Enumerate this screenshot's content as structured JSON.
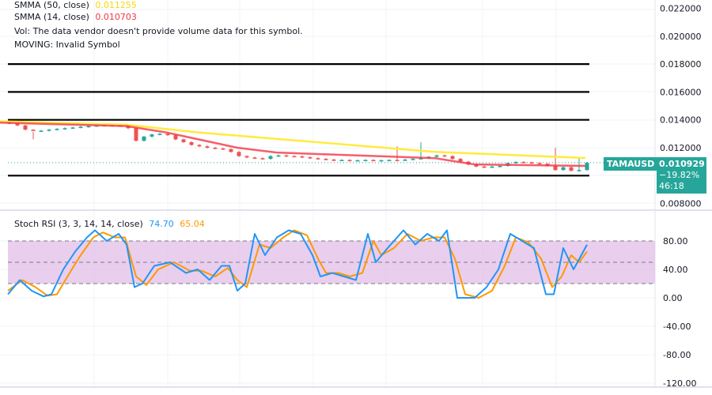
{
  "legend": {
    "smma50_label": "SMMA (50, close)",
    "smma50_value": "0.011255",
    "smma14_label": "SMMA (14, close)",
    "smma14_value": "0.010703",
    "vol_text": "Vol: The data vendor doesn't provide volume data for this symbol.",
    "moving_text": "MOVING: Invalid Symbol",
    "stoch_label": "Stoch RSI (3, 3, 14, 14, close)",
    "stoch_k_value": "74.70",
    "stoch_d_value": "65.04"
  },
  "symbol_tag": "TAMAUSD",
  "price_tag": {
    "price": "0.010929",
    "change": "−19.82%",
    "countdown": "46:18"
  },
  "colors": {
    "up": "#26a69a",
    "down": "#ef5350",
    "smma50": "#ffeb3b",
    "smma14": "#f23645",
    "stoch_k": "#2196f3",
    "stoch_d": "#ff9800",
    "band": "#e1bee7"
  },
  "chart_data": [
    {
      "type": "candlestick",
      "y_ticks": [
        "0.022000",
        "0.020000",
        "0.018000",
        "0.016000",
        "0.014000",
        "0.012000",
        "0.008000"
      ],
      "ylim": [
        0.0076,
        0.0228
      ],
      "horizontal_levels": [
        0.018,
        0.016,
        0.014,
        0.01
      ],
      "closes": [
        0.01375,
        0.0136,
        0.0133,
        0.0132,
        0.01322,
        0.0133,
        0.01335,
        0.0134,
        0.01345,
        0.0135,
        0.01355,
        0.0136,
        0.01362,
        0.0136,
        0.01358,
        0.0134,
        0.0125,
        0.0128,
        0.01295,
        0.013,
        0.0129,
        0.0126,
        0.0124,
        0.0122,
        0.0121,
        0.012,
        0.01195,
        0.0119,
        0.0117,
        0.0114,
        0.0113,
        0.01125,
        0.0112,
        0.0114,
        0.01145,
        0.0114,
        0.01138,
        0.01132,
        0.01125,
        0.0112,
        0.01115,
        0.0111,
        0.01112,
        0.01108,
        0.0111,
        0.01112,
        0.01108,
        0.0111,
        0.01112,
        0.0111,
        0.01115,
        0.0112,
        0.01125,
        0.01135,
        0.01145,
        0.0114,
        0.0112,
        0.011,
        0.0108,
        0.01065,
        0.0106,
        0.01065,
        0.0107,
        0.0109,
        0.01098,
        0.01095,
        0.0109,
        0.01085,
        0.0107,
        0.0104,
        0.0106,
        0.01035,
        0.0104,
        0.010929
      ],
      "spike_highs": {
        "3": 0.0126,
        "49": 0.0121,
        "52": 0.0124,
        "69": 0.012,
        "72": 0.0113
      },
      "smma50": [
        [
          0,
          0.0139
        ],
        [
          160,
          0.01365
        ],
        [
          250,
          0.0131
        ],
        [
          400,
          0.0124
        ],
        [
          550,
          0.0117
        ],
        [
          740,
          0.01126
        ]
      ],
      "smma14": [
        [
          0,
          0.0138
        ],
        [
          160,
          0.01355
        ],
        [
          210,
          0.0131
        ],
        [
          300,
          0.012
        ],
        [
          350,
          0.01165
        ],
        [
          550,
          0.01125
        ],
        [
          600,
          0.0108
        ],
        [
          740,
          0.0107
        ]
      ]
    },
    {
      "type": "line",
      "y_ticks": [
        "80.00",
        "40.00",
        "0.00",
        "-40.00",
        "-80.00",
        "-120.00"
      ],
      "band": [
        20,
        80
      ],
      "k": [
        [
          10,
          5
        ],
        [
          25,
          25
        ],
        [
          40,
          10
        ],
        [
          55,
          2
        ],
        [
          65,
          5
        ],
        [
          80,
          40
        ],
        [
          95,
          65
        ],
        [
          110,
          85
        ],
        [
          120,
          95
        ],
        [
          135,
          80
        ],
        [
          150,
          90
        ],
        [
          160,
          75
        ],
        [
          170,
          15
        ],
        [
          180,
          20
        ],
        [
          195,
          45
        ],
        [
          215,
          50
        ],
        [
          235,
          35
        ],
        [
          250,
          40
        ],
        [
          265,
          25
        ],
        [
          280,
          45
        ],
        [
          290,
          45
        ],
        [
          300,
          10
        ],
        [
          310,
          20
        ],
        [
          322,
          90
        ],
        [
          335,
          60
        ],
        [
          350,
          85
        ],
        [
          365,
          95
        ],
        [
          380,
          90
        ],
        [
          395,
          60
        ],
        [
          405,
          30
        ],
        [
          420,
          35
        ],
        [
          435,
          30
        ],
        [
          450,
          25
        ],
        [
          465,
          90
        ],
        [
          475,
          50
        ],
        [
          490,
          70
        ],
        [
          510,
          95
        ],
        [
          525,
          75
        ],
        [
          540,
          90
        ],
        [
          555,
          80
        ],
        [
          565,
          95
        ],
        [
          578,
          0
        ],
        [
          600,
          0
        ],
        [
          615,
          15
        ],
        [
          630,
          40
        ],
        [
          645,
          90
        ],
        [
          660,
          80
        ],
        [
          675,
          70
        ],
        [
          690,
          5
        ],
        [
          700,
          5
        ],
        [
          712,
          70
        ],
        [
          725,
          40
        ],
        [
          742,
          74.7
        ]
      ],
      "d": [
        [
          10,
          10
        ],
        [
          28,
          25
        ],
        [
          45,
          15
        ],
        [
          60,
          3
        ],
        [
          72,
          5
        ],
        [
          88,
          35
        ],
        [
          102,
          60
        ],
        [
          118,
          85
        ],
        [
          130,
          92
        ],
        [
          145,
          85
        ],
        [
          158,
          85
        ],
        [
          172,
          30
        ],
        [
          185,
          18
        ],
        [
          200,
          40
        ],
        [
          220,
          50
        ],
        [
          240,
          38
        ],
        [
          255,
          38
        ],
        [
          272,
          30
        ],
        [
          288,
          42
        ],
        [
          300,
          25
        ],
        [
          312,
          15
        ],
        [
          328,
          75
        ],
        [
          342,
          70
        ],
        [
          358,
          85
        ],
        [
          372,
          95
        ],
        [
          388,
          88
        ],
        [
          402,
          55
        ],
        [
          412,
          35
        ],
        [
          428,
          35
        ],
        [
          442,
          30
        ],
        [
          458,
          35
        ],
        [
          472,
          80
        ],
        [
          482,
          60
        ],
        [
          498,
          70
        ],
        [
          515,
          90
        ],
        [
          532,
          80
        ],
        [
          548,
          85
        ],
        [
          562,
          85
        ],
        [
          575,
          55
        ],
        [
          588,
          5
        ],
        [
          605,
          0
        ],
        [
          622,
          10
        ],
        [
          638,
          45
        ],
        [
          652,
          85
        ],
        [
          668,
          78
        ],
        [
          684,
          55
        ],
        [
          698,
          15
        ],
        [
          710,
          30
        ],
        [
          722,
          60
        ],
        [
          732,
          50
        ],
        [
          742,
          65.04
        ]
      ]
    }
  ]
}
